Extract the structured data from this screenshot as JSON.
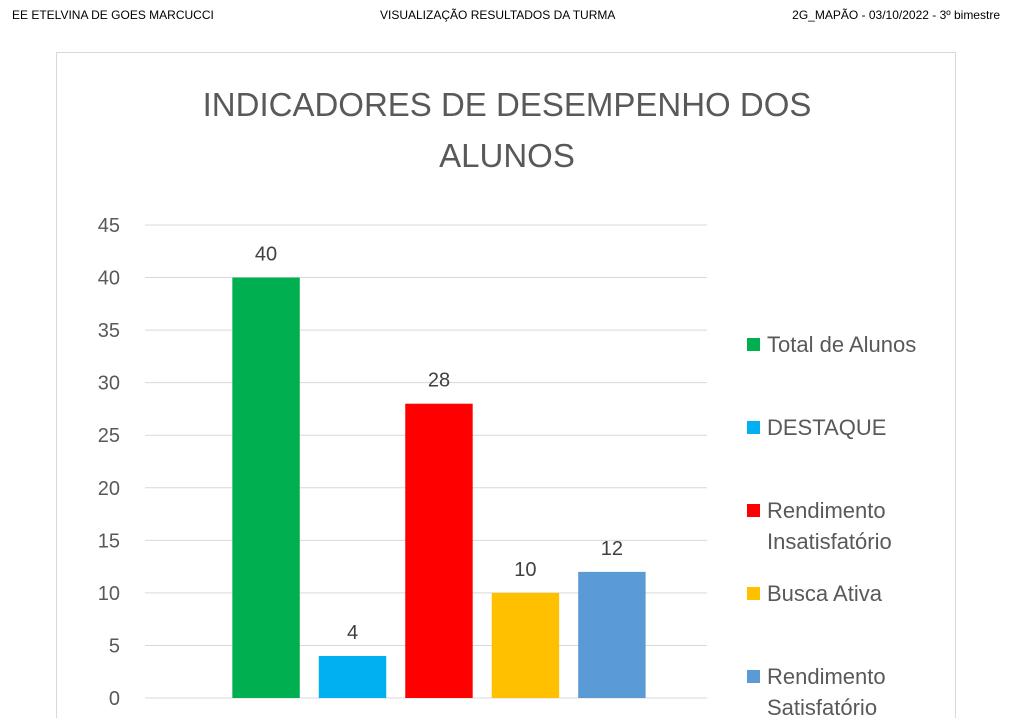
{
  "header": {
    "left": "EE ETELVINA DE GOES MARCUCCI",
    "center": "VISUALIZAÇÃO  RESULTADOS DA TURMA",
    "right": "2G_MAPÃO - 03/10/2022 - 3º bimestre"
  },
  "chart_data": {
    "type": "bar",
    "title_lines": [
      "INDICADORES DE DESEMPENHO DOS",
      "ALUNOS"
    ],
    "categories": [
      "Total de Alunos",
      "DESTAQUE",
      "Rendimento Insatisfatório",
      "Busca Ativa",
      "Rendimento Satisfatório"
    ],
    "values": [
      40,
      4,
      28,
      10,
      12
    ],
    "colors": [
      "#00b050",
      "#00b0f0",
      "#ff0000",
      "#ffc000",
      "#5b9bd5"
    ],
    "ylim": [
      0,
      45
    ],
    "yticks": [
      0,
      5,
      10,
      15,
      20,
      25,
      30,
      35,
      40,
      45
    ],
    "grid": true,
    "legend_position": "right",
    "legend": [
      {
        "lines": [
          "Total de Alunos"
        ],
        "color": "#00b050"
      },
      {
        "lines": [
          "DESTAQUE"
        ],
        "color": "#00b0f0"
      },
      {
        "lines": [
          "Rendimento",
          "Insatisfatório"
        ],
        "color": "#ff0000"
      },
      {
        "lines": [
          "Busca Ativa"
        ],
        "color": "#ffc000"
      },
      {
        "lines": [
          "Rendimento",
          "Satisfatório"
        ],
        "color": "#5b9bd5"
      }
    ]
  }
}
